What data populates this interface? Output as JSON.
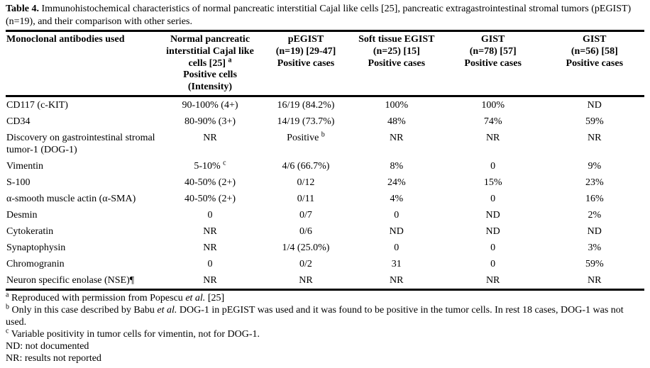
{
  "caption": {
    "label": "Table 4.",
    "text": "Immunohistochemical characteristics of normal pancreatic interstitial Cajal like cells [25], pancreatic extragastrointestinal stromal tumors (pEGIST) (n=19), and their comparison with other series."
  },
  "table": {
    "header": [
      [
        "Monoclonal antibodies used"
      ],
      [
        "Normal pancreatic",
        "interstitial Cajal like",
        "cells [25] ^a",
        "Positive cells",
        "(Intensity)"
      ],
      [
        "pEGIST",
        "(n=19) [29-47]",
        "Positive cases"
      ],
      [
        "Soft tissue EGIST",
        "(n=25) [15]",
        "Positive cases"
      ],
      [
        "GIST",
        "(n=78) [57]",
        "Positive cases"
      ],
      [
        "GIST",
        "(n=56) [58]",
        "Positive cases"
      ]
    ],
    "rows": [
      [
        "CD117 (c-KIT)",
        "90-100% (4+)",
        "16/19 (84.2%)",
        "100%",
        "100%",
        "ND"
      ],
      [
        "CD34",
        "80-90% (3+)",
        "14/19 (73.7%)",
        "48%",
        "74%",
        "59%"
      ],
      [
        "Discovery on gastrointestinal stromal tumor-1 (DOG-1)",
        "NR",
        "Positive ^b",
        "NR",
        "NR",
        "NR"
      ],
      [
        "Vimentin",
        "5-10% ^c",
        "4/6 (66.7%)",
        "8%",
        "0",
        "9%"
      ],
      [
        "S-100",
        "40-50% (2+)",
        "0/12",
        "24%",
        "15%",
        "23%"
      ],
      [
        "α-smooth muscle actin (α-SMA)",
        "40-50% (2+)",
        "0/11",
        "4%",
        "0",
        "16%"
      ],
      [
        "Desmin",
        "0",
        "0/7",
        "0",
        "ND",
        "2%"
      ],
      [
        "Cytokeratin",
        "NR",
        "0/6",
        "ND",
        "ND",
        "ND"
      ],
      [
        "Synaptophysin",
        "NR",
        "1/4 (25.0%)",
        "0",
        "0",
        "3%"
      ],
      [
        "Chromogranin",
        "0",
        "0/2",
        "31",
        "0",
        "59%"
      ],
      [
        "Neuron specific enolase (NSE)¶",
        "NR",
        "NR",
        "NR",
        "NR",
        "NR"
      ]
    ]
  },
  "footnotes": [
    "^a Reproduced with permission from Popescu *et al.* [25]",
    "^b Only in this case described by Babu *et al.* DOG-1 in pEGIST was used and it was found to be positive in the tumor cells. In rest 18 cases, DOG-1 was not used.",
    "^c Variable positivity in tumor cells for vimentin, not for DOG-1.",
    "ND: not documented",
    "NR: results not reported"
  ]
}
